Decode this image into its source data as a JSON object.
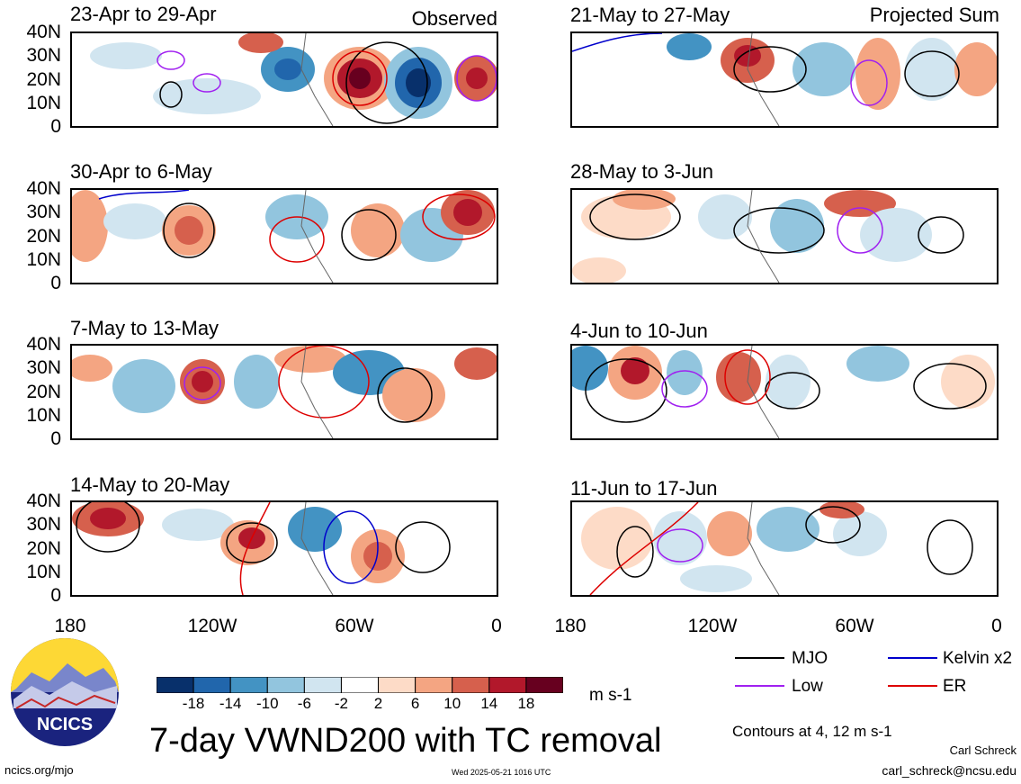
{
  "tags": {
    "observed": "Observed",
    "projected": "Projected Sum"
  },
  "panels_left": [
    {
      "title": "23-Apr to 29-Apr"
    },
    {
      "title": "30-Apr to 6-May"
    },
    {
      "title": "7-May to 13-May"
    },
    {
      "title": "14-May to 20-May"
    }
  ],
  "panels_right": [
    {
      "title": "21-May to 27-May"
    },
    {
      "title": "28-May to 3-Jun"
    },
    {
      "title": "4-Jun to 10-Jun"
    },
    {
      "title": "11-Jun to 17-Jun"
    }
  ],
  "lat_labels": [
    "40N",
    "30N",
    "20N",
    "10N",
    "0"
  ],
  "lon_labels": [
    "180",
    "120W",
    "60W",
    "0"
  ],
  "colorbar": {
    "labels": [
      "-18",
      "-14",
      "-10",
      "-6",
      "-2",
      "2",
      "6",
      "10",
      "14",
      "18"
    ],
    "colors": [
      "#08306b",
      "#2166ac",
      "#4393c3",
      "#92c5de",
      "#d1e5f0",
      "#ffffff",
      "#fddbc7",
      "#f4a582",
      "#d6604d",
      "#b2182b",
      "#67001f"
    ],
    "units": "m s-1"
  },
  "legend": {
    "mjo": "MJO",
    "kelvin": "Kelvin x2",
    "low": "Low",
    "er": "ER",
    "contours": "Contours at 4, 12 m s-1",
    "colors": {
      "mjo": "#000000",
      "kelvin": "#0000cc",
      "low": "#a020f0",
      "er": "#dd0000"
    }
  },
  "title": "7-day VWND200 with TC removal",
  "footer": {
    "site": "ncics.org/mjo",
    "timestamp": "Wed 2025-05-21 1016 UTC",
    "author": "Carl Schreck",
    "email": "carl_schreck@ncsu.edu",
    "logo_text": "NCICS"
  }
}
